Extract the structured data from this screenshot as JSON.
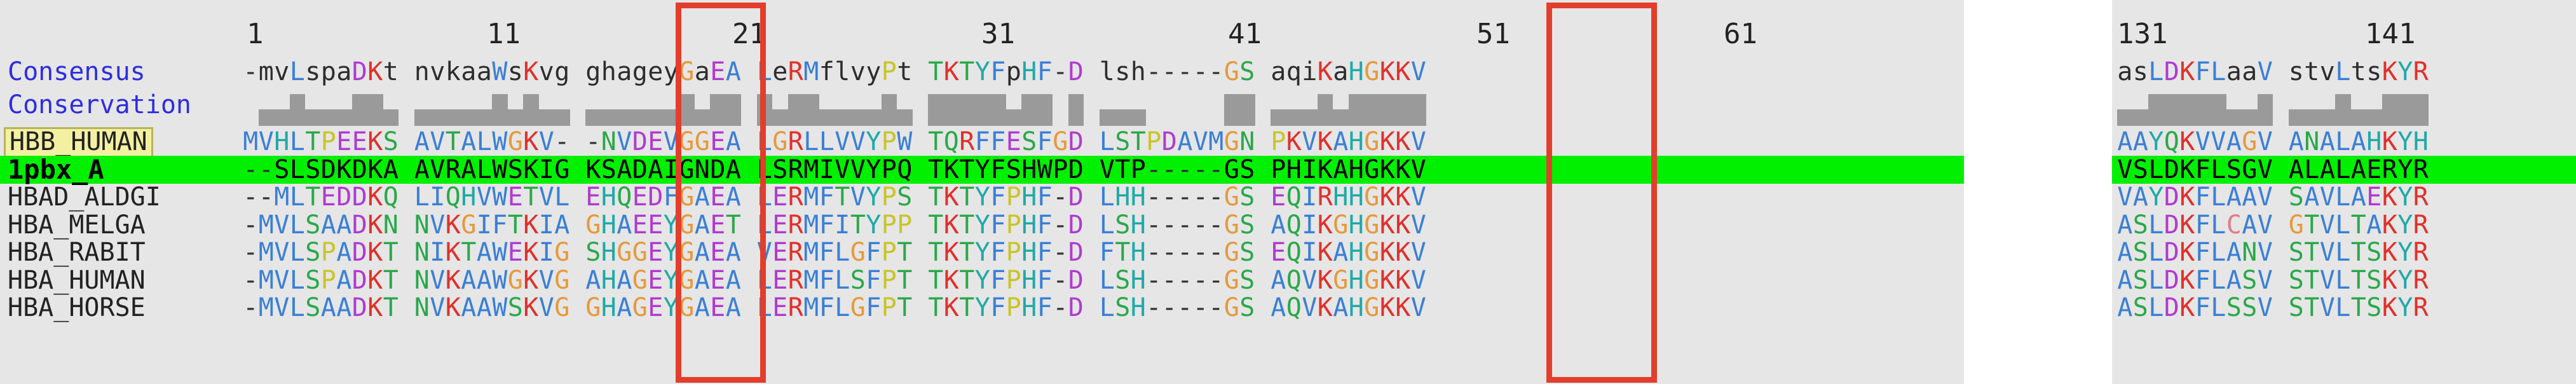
{
  "left": {
    "ruler": [
      "1",
      "11",
      "21",
      "31",
      "41",
      "51",
      "61"
    ],
    "consensus_label": "Consensus",
    "conservation_label": "Conservation",
    "consensus": "-mvLspaDKt nvkaaWsKvg ghageyGaEA LeRMflvyPt TKTYFpHF-D lsh-----GS aqiKaHGKKV",
    "rows": [
      {
        "label": "HBB_HUMAN",
        "seq": "MVHLTPEEKS AVTALWGKV- -NVDEVGGEA LGRLLVVYPW TQRFFESFGD LSTPDAVMGN PKVKAHGKKV"
      },
      {
        "label": "1pbx_A",
        "seq": "--SLSDKDKA AVRALWSKIG KSADAIGNDA LSRMIVVYPQ TKTYFSHWPD VTP-----GS PHIKAHGKKV"
      },
      {
        "label": "HBAD_ALDGI",
        "seq": "--MLTEDDKQ LIQHVWETVL EHQEDFGAEA LERMFTVYPS TKTYFPHF-D LHH-----GS EQIRHHGKKV"
      },
      {
        "label": "HBA_MELGA",
        "seq": "-MVLSAADKN NVKGIFTKIA GHAEEYGAET LERMFITYPP TKTYFPHF-D LSH-----GS AQIKGHGKKV"
      },
      {
        "label": "HBA_RABIT",
        "seq": "-MVLSPADKT NIKTAWEKIG SHGGEYGAEA VERMFLGFPT TKTYFPHF-D FTH-----GS EQIKAHGKKV"
      },
      {
        "label": "HBA_HUMAN",
        "seq": "-MVLSPADKT NVKAAWGKVG AHAGEYGAEA LERMFLSFPT TKTYFPHF-D LSH-----GS AQVKGHGKKV"
      },
      {
        "label": "HBA_HORSE",
        "seq": "-MVLSAADKT NVKAAWSKVG GHAGEYGAEA LERMFLGFPT TKTYFPHF-D LSH-----GS AQVKAHGKKV"
      }
    ]
  },
  "right": {
    "ruler": [
      "131",
      "141"
    ],
    "consensus": "asLDKFLaaV stvLtsKYR",
    "rows": [
      {
        "seq": "AAYQKVVAGV ANALAHKYH"
      },
      {
        "seq": "VSLDKFLSGV ALALAERYR"
      },
      {
        "seq": "VAYDKFLAAV SAVLAEKYR"
      },
      {
        "seq": "ASLDKFLCAV GTVLTAKYR"
      },
      {
        "seq": "ASLDKFLANV STVLTSKYR"
      },
      {
        "seq": "ASLDKFLASV STVLTSKYR"
      },
      {
        "seq": "ASLDKFLSSV STVLTSKYR"
      }
    ]
  },
  "colors": {
    "highlight_row": "#00f000",
    "selection_box": "#e23e2c",
    "conservation_bar": "#9a9a9a"
  }
}
